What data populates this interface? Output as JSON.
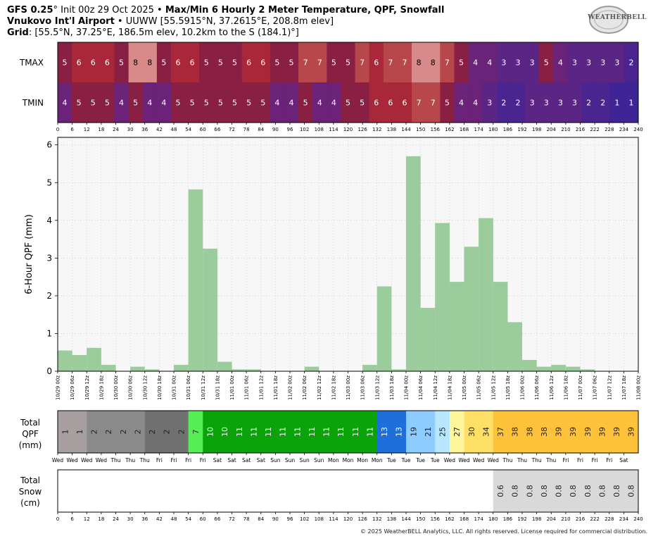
{
  "header": {
    "model": "GFS 0.25",
    "model_suffix": "°",
    "init": " Init 00z 29 Oct 2025 • ",
    "product": "Max/Min 6 Hourly 2 Meter Temperature,  QPF,  Snowfall",
    "station_name": "Vnukovo Int'l Airport",
    "station_info": " • UUWW [55.5915°N, 37.2615°E, 208.8m elev]",
    "grid_label": "Grid",
    "grid_info": ": [55.5°N, 37.25°E, 186.5m elev, 10.2km to the S (184.1)°]"
  },
  "logo": {
    "text": "WEATHERBELL"
  },
  "copyright": "© 2025 WeatherBELL Analytics, LLC. All rights reserved. License required for commercial distribution.",
  "hour_ticks": [
    "0",
    "6",
    "12",
    "18",
    "24",
    "30",
    "36",
    "42",
    "48",
    "54",
    "60",
    "66",
    "72",
    "78",
    "84",
    "90",
    "96",
    "102",
    "108",
    "114",
    "120",
    "126",
    "132",
    "138",
    "144",
    "150",
    "156",
    "162",
    "168",
    "174",
    "180",
    "186",
    "192",
    "198",
    "204",
    "210",
    "216",
    "222",
    "228",
    "234",
    "240"
  ],
  "temperature": {
    "row_labels": [
      "TMAX",
      "TMIN"
    ],
    "tmax": [
      5,
      6,
      6,
      6,
      5,
      8,
      8,
      5,
      6,
      6,
      5,
      5,
      5,
      6,
      6,
      5,
      5,
      7,
      7,
      5,
      5,
      7,
      6,
      7,
      7,
      8,
      8,
      7,
      5,
      4,
      4,
      3,
      3,
      3,
      5,
      4,
      3,
      3,
      3,
      3,
      2
    ],
    "tmin": [
      4,
      5,
      5,
      5,
      4,
      5,
      4,
      4,
      5,
      5,
      5,
      5,
      5,
      5,
      5,
      4,
      4,
      5,
      4,
      4,
      5,
      5,
      6,
      6,
      6,
      7,
      7,
      5,
      4,
      4,
      3,
      2,
      2,
      3,
      3,
      3,
      3,
      2,
      2,
      1,
      1
    ]
  },
  "chart_data": {
    "type": "bar",
    "ylabel": "6-Hour QPF (mm)",
    "ylim": [
      0,
      6.2
    ],
    "yticks": [
      0,
      1,
      2,
      3,
      4,
      5,
      6
    ],
    "grid": true,
    "x_hours": [
      6,
      12,
      18,
      24,
      30,
      36,
      42,
      48,
      54,
      60,
      66,
      72,
      78,
      84,
      90,
      96,
      102,
      108,
      114,
      120,
      126,
      132,
      138,
      144,
      150,
      156,
      162,
      168,
      174,
      180,
      186,
      192,
      198,
      204,
      210,
      216,
      222,
      228,
      234,
      240
    ],
    "values": [
      0.55,
      0.43,
      0.62,
      0.17,
      0,
      0.12,
      0.05,
      0,
      0.17,
      4.82,
      3.25,
      0.25,
      0.05,
      0.05,
      0,
      0,
      0,
      0.12,
      0,
      0,
      0,
      0.17,
      2.25,
      0.05,
      5.7,
      1.68,
      3.93,
      2.37,
      3.3,
      4.06,
      2.37,
      1.3,
      0.3,
      0.12,
      0.17,
      0.12,
      0.05,
      0,
      0,
      0
    ],
    "date_labels": [
      "10/29 00z",
      "10/29 06z",
      "10/29 12z",
      "10/29 18z",
      "10/30 00z",
      "10/30 06z",
      "10/30 12z",
      "10/30 18z",
      "10/31 00z",
      "10/31 06z",
      "10/31 12z",
      "10/31 18z",
      "11/01 00z",
      "11/01 06z",
      "11/01 12z",
      "11/01 18z",
      "11/02 00z",
      "11/02 06z",
      "11/02 12z",
      "11/02 18z",
      "11/03 00z",
      "11/03 06z",
      "11/03 12z",
      "11/03 18z",
      "11/04 00z",
      "11/04 06z",
      "11/04 12z",
      "11/04 18z",
      "11/05 00z",
      "11/05 06z",
      "11/05 12z",
      "11/05 18z",
      "11/06 00z",
      "11/06 06z",
      "11/06 12z",
      "11/06 18z",
      "11/07 00z",
      "11/07 06z",
      "11/07 12z",
      "11/07 18z",
      "11/08 00z"
    ]
  },
  "total_qpf": {
    "label_lines": [
      "Total",
      "QPF",
      "(mm)"
    ],
    "values": [
      "1",
      "1",
      "2",
      "2",
      "2",
      "2",
      "2",
      "2",
      "2",
      "7",
      "10",
      "10",
      "11",
      "11",
      "11",
      "11",
      "11",
      "11",
      "11",
      "11",
      "11",
      "11",
      "13",
      "13",
      "19",
      "21",
      "25",
      "27",
      "30",
      "34",
      "37",
      "38",
      "38",
      "38",
      "39",
      "39",
      "39",
      "39",
      "39",
      "39"
    ],
    "colors": [
      "#a8a0a0",
      "#a8a0a0",
      "#8a8a8a",
      "#8a8a8a",
      "#8a8a8a",
      "#8a8a8a",
      "#707070",
      "#707070",
      "#707070",
      "#55ee55",
      "#0aa30a",
      "#0aa30a",
      "#0aa30a",
      "#0aa30a",
      "#0aa30a",
      "#0aa30a",
      "#0aa30a",
      "#0aa30a",
      "#0aa30a",
      "#0aa30a",
      "#0aa30a",
      "#0aa30a",
      "#1e6fd9",
      "#1e6fd9",
      "#8ecbff",
      "#8ecbff",
      "#b9e6ff",
      "#fff59a",
      "#ffe066",
      "#ffe066",
      "#ffc23b",
      "#ffc23b",
      "#ffc23b",
      "#ffc23b",
      "#ffc23b",
      "#ffc23b",
      "#ffc23b",
      "#ffc23b",
      "#ffc23b",
      "#ffc23b"
    ]
  },
  "day_labels": [
    "Wed",
    "Wed",
    "Wed",
    "Wed",
    "Thu",
    "Thu",
    "Thu",
    "Fri",
    "Fri",
    "Fri",
    "Fri",
    "Sat",
    "Sat",
    "Sat",
    "Sat",
    "Sun",
    "Sun",
    "Sun",
    "Sun",
    "Mon",
    "Mon",
    "Mon",
    "Mon",
    "Tue",
    "Tue",
    "Tue",
    "Tue",
    "Wed",
    "Wed",
    "Wed",
    "Wed",
    "Thu",
    "Thu",
    "Thu",
    "Thu",
    "Fri",
    "Fri",
    "Fri",
    "Fri",
    "Sat"
  ],
  "total_snow": {
    "label_lines": [
      "Total",
      "Snow",
      "(cm)"
    ],
    "values": [
      "",
      "",
      "",
      "",
      "",
      "",
      "",
      "",
      "",
      "",
      "",
      "",
      "",
      "",
      "",
      "",
      "",
      "",
      "",
      "",
      "",
      "",
      "",
      "",
      "",
      "",
      "",
      "",
      "",
      "",
      "0.6",
      "0.8",
      "0.8",
      "0.8",
      "0.8",
      "0.8",
      "0.8",
      "0.8",
      "0.8",
      "0.8"
    ],
    "color": "#d9d9d9"
  }
}
